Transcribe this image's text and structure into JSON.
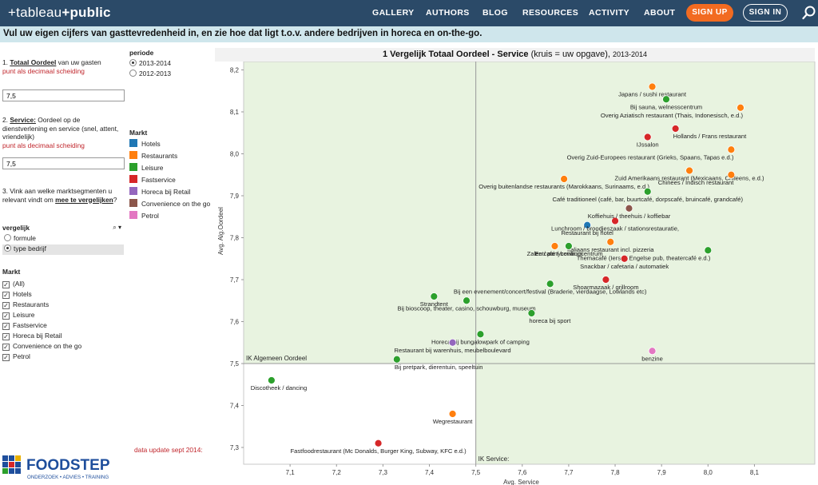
{
  "nav": {
    "logo_pre": "+",
    "logo_a": "tableau",
    "logo_b": "+public",
    "links": [
      "GALLERY",
      "AUTHORS",
      "BLOG",
      "RESOURCES",
      "ACTIVITY",
      "ABOUT"
    ],
    "signup": "SIGN UP",
    "signin": "SIGN IN"
  },
  "banner": "Vul uw eigen cijfers van gasttevredenheid in, en zie hoe dat ligt t.o.v. andere bedrijven in horeca en on-the-go.",
  "left": {
    "q1_num": "1.",
    "q1_title": "Totaal Oordeel",
    "q1_rest": " van uw gasten",
    "q1_hint": "punt als decimaal scheiding",
    "q1_value": "7,5",
    "q2_num": "2.",
    "q2_title": "Service:",
    "q2_rest": " Oordeel op de dienstverlening en service (snel, attent, vriendelijk)",
    "q2_hint": "punt als decimaal scheiding",
    "q2_value": "7,5",
    "q3_text": "3. Vink aan welke marktsegmenten u relevant vindt om ",
    "q3_bold": "mee te vergelijken",
    "q3_end": "?",
    "vergelijk_label": "vergelijk",
    "vergelijk_options": [
      "formule",
      "type bedrijf"
    ],
    "vergelijk_selected": 1,
    "markt_title": "Markt",
    "markt_items": [
      "(All)",
      "Hotels",
      "Restaurants",
      "Leisure",
      "Fastservice",
      "Horeca bij Retail",
      "Convenience on the go",
      "Petrol"
    ],
    "data_update": "data update sept 2014:"
  },
  "periode": {
    "label": "periode",
    "options": [
      "2013-2014",
      "2012-2013"
    ],
    "selected": 0
  },
  "legend": {
    "title": "Markt",
    "items": [
      {
        "label": "Hotels",
        "color": "#1f77b4"
      },
      {
        "label": "Restaurants",
        "color": "#ff7f0e"
      },
      {
        "label": "Leisure",
        "color": "#2ca02c"
      },
      {
        "label": "Fastservice",
        "color": "#d62728"
      },
      {
        "label": "Horeca bij Retail",
        "color": "#9467bd"
      },
      {
        "label": "Convenience on the go",
        "color": "#8c564b"
      },
      {
        "label": "Petrol",
        "color": "#e377c2"
      }
    ]
  },
  "foodstep": {
    "name": "FOODSTEP",
    "tagline": "ONDERZOEK • ADVIES • TRAINING"
  },
  "chart_data": {
    "type": "scatter",
    "title": "1 Vergelijk Totaal Oordeel - Service",
    "title_suffix": " (kruis = uw opgave), ",
    "period": "2013-2014",
    "xlabel": "Avg. Service",
    "ylabel": "Avg. Alg.Oordeel",
    "xlim": [
      7.0,
      8.23
    ],
    "ylim": [
      7.26,
      8.22
    ],
    "xticks": [
      "7,1",
      "7,2",
      "7,3",
      "7,4",
      "7,5",
      "7,6",
      "7,7",
      "7,8",
      "7,9",
      "8,0",
      "8,1"
    ],
    "xtick_values": [
      7.1,
      7.2,
      7.3,
      7.4,
      7.5,
      7.6,
      7.7,
      7.8,
      7.9,
      8.0,
      8.1
    ],
    "yticks": [
      "7,3",
      "7,4",
      "7,5",
      "7,6",
      "7,7",
      "7,8",
      "7,9",
      "8,0",
      "8,1",
      "8,2"
    ],
    "ytick_values": [
      7.3,
      7.4,
      7.5,
      7.6,
      7.7,
      7.8,
      7.9,
      8.0,
      8.1,
      8.2
    ],
    "ref_x": 7.5,
    "ref_y": 7.5,
    "ref_x_label": "IK Service:",
    "ref_y_label": "IK Algemeen Oordeel",
    "series": [
      {
        "name": "Hotels",
        "color": "#1f77b4",
        "points": [
          {
            "x": 7.74,
            "y": 7.83,
            "label": "Restaurant bij hotel",
            "anchor": "middle"
          }
        ]
      },
      {
        "name": "Restaurants",
        "color": "#ff7f0e",
        "points": [
          {
            "x": 7.88,
            "y": 8.16,
            "label": "Japans / sushi restaurant",
            "anchor": "middle"
          },
          {
            "x": 8.07,
            "y": 8.11,
            "label": "Overig Aziatisch restaurant (Thais, Indonesisch, e.d.)",
            "anchor": "end"
          },
          {
            "x": 8.05,
            "y": 8.01,
            "label": "Overig Zuid-Europees restaurant (Grieks, Spaans, Tapas e.d.)",
            "anchor": "end"
          },
          {
            "x": 7.96,
            "y": 7.96,
            "label": "Zuid Amerikaans restaurant (Mexicaans, Chileens, e.d.)",
            "anchor": "middle"
          },
          {
            "x": 8.05,
            "y": 7.95,
            "label": "Chinees / Indisch restaurant",
            "anchor": "end"
          },
          {
            "x": 7.69,
            "y": 7.94,
            "label": "Overig buitenlandse restaurants (Marokkaans, Surinaams, e.d.)",
            "anchor": "middle"
          },
          {
            "x": 7.79,
            "y": 7.79,
            "label": "Italiaans restaurant incl. pizzeria",
            "anchor": "middle"
          },
          {
            "x": 7.67,
            "y": 7.78,
            "label": "Zalen / partycentrum",
            "anchor": "middle"
          },
          {
            "x": 7.45,
            "y": 7.38,
            "label": "Wegrestaurant",
            "anchor": "middle"
          }
        ]
      },
      {
        "name": "Leisure",
        "color": "#2ca02c",
        "points": [
          {
            "x": 7.91,
            "y": 8.13,
            "label": "Bij sauna, welnesscentrum",
            "anchor": "middle"
          },
          {
            "x": 7.87,
            "y": 7.91,
            "label": "Café traditioneel (café, bar, buurtcafé, dorpscafé, bruincafé, grandcafé)",
            "anchor": "middle"
          },
          {
            "x": 7.7,
            "y": 7.78,
            "label": "Eetcafé / bowlingcentrum",
            "anchor": "middle"
          },
          {
            "x": 8.0,
            "y": 7.77,
            "label": "Themacafé (Ierse / Engelse pub, theatercafé e.d.)",
            "anchor": "end"
          },
          {
            "x": 7.66,
            "y": 7.69,
            "label": "Bij een evenement/concert/festival (Braderie, vierdaagse, Lowlands etc)",
            "anchor": "middle"
          },
          {
            "x": 7.41,
            "y": 7.66,
            "label": "Strandtent",
            "anchor": "middle"
          },
          {
            "x": 7.48,
            "y": 7.65,
            "label": "Bij bioscoop, theater, casino, schouwburg, museum",
            "anchor": "middle"
          },
          {
            "x": 7.62,
            "y": 7.62,
            "label": "horeca bij sport",
            "anchor": "start"
          },
          {
            "x": 7.51,
            "y": 7.57,
            "label": "Horeca bij bungalowpark of camping",
            "anchor": "middle"
          },
          {
            "x": 7.33,
            "y": 7.51,
            "label": "Bij pretpark, dierentuin, speeltuin",
            "anchor": "start"
          },
          {
            "x": 7.06,
            "y": 7.46,
            "label": "Discotheek / dancing",
            "anchor": "middle"
          }
        ]
      },
      {
        "name": "Fastservice",
        "color": "#d62728",
        "points": [
          {
            "x": 7.93,
            "y": 8.06,
            "label": "Hollands / Frans restaurant",
            "anchor": "start"
          },
          {
            "x": 7.87,
            "y": 8.04,
            "label": "IJssalon",
            "anchor": "middle"
          },
          {
            "x": 7.8,
            "y": 7.84,
            "label": "Lunchroom / broodjeszaak / stationsrestauratie,",
            "anchor": "middle"
          },
          {
            "x": 7.82,
            "y": 7.75,
            "label": "Snackbar / cafetaria / automatiek",
            "anchor": "middle"
          },
          {
            "x": 7.78,
            "y": 7.7,
            "label": "Shoarmazaak / grillroom",
            "anchor": "middle"
          },
          {
            "x": 7.29,
            "y": 7.31,
            "label": "Fastfoodrestaurant (Mc Donalds, Burger King, Subway, KFC e.d.)",
            "anchor": "middle"
          }
        ]
      },
      {
        "name": "Horeca bij Retail",
        "color": "#9467bd",
        "points": [
          {
            "x": 7.45,
            "y": 7.55,
            "label": "Restaurant bij warenhuis, meubelboulevard",
            "anchor": "middle"
          }
        ]
      },
      {
        "name": "Convenience on the go",
        "color": "#8c564b",
        "points": [
          {
            "x": 7.83,
            "y": 7.87,
            "label": "Koffiehuis / theehuis / koffiebar",
            "anchor": "middle"
          }
        ]
      },
      {
        "name": "Petrol",
        "color": "#e377c2",
        "points": [
          {
            "x": 7.88,
            "y": 7.53,
            "label": "benzine",
            "anchor": "middle"
          }
        ]
      }
    ]
  }
}
